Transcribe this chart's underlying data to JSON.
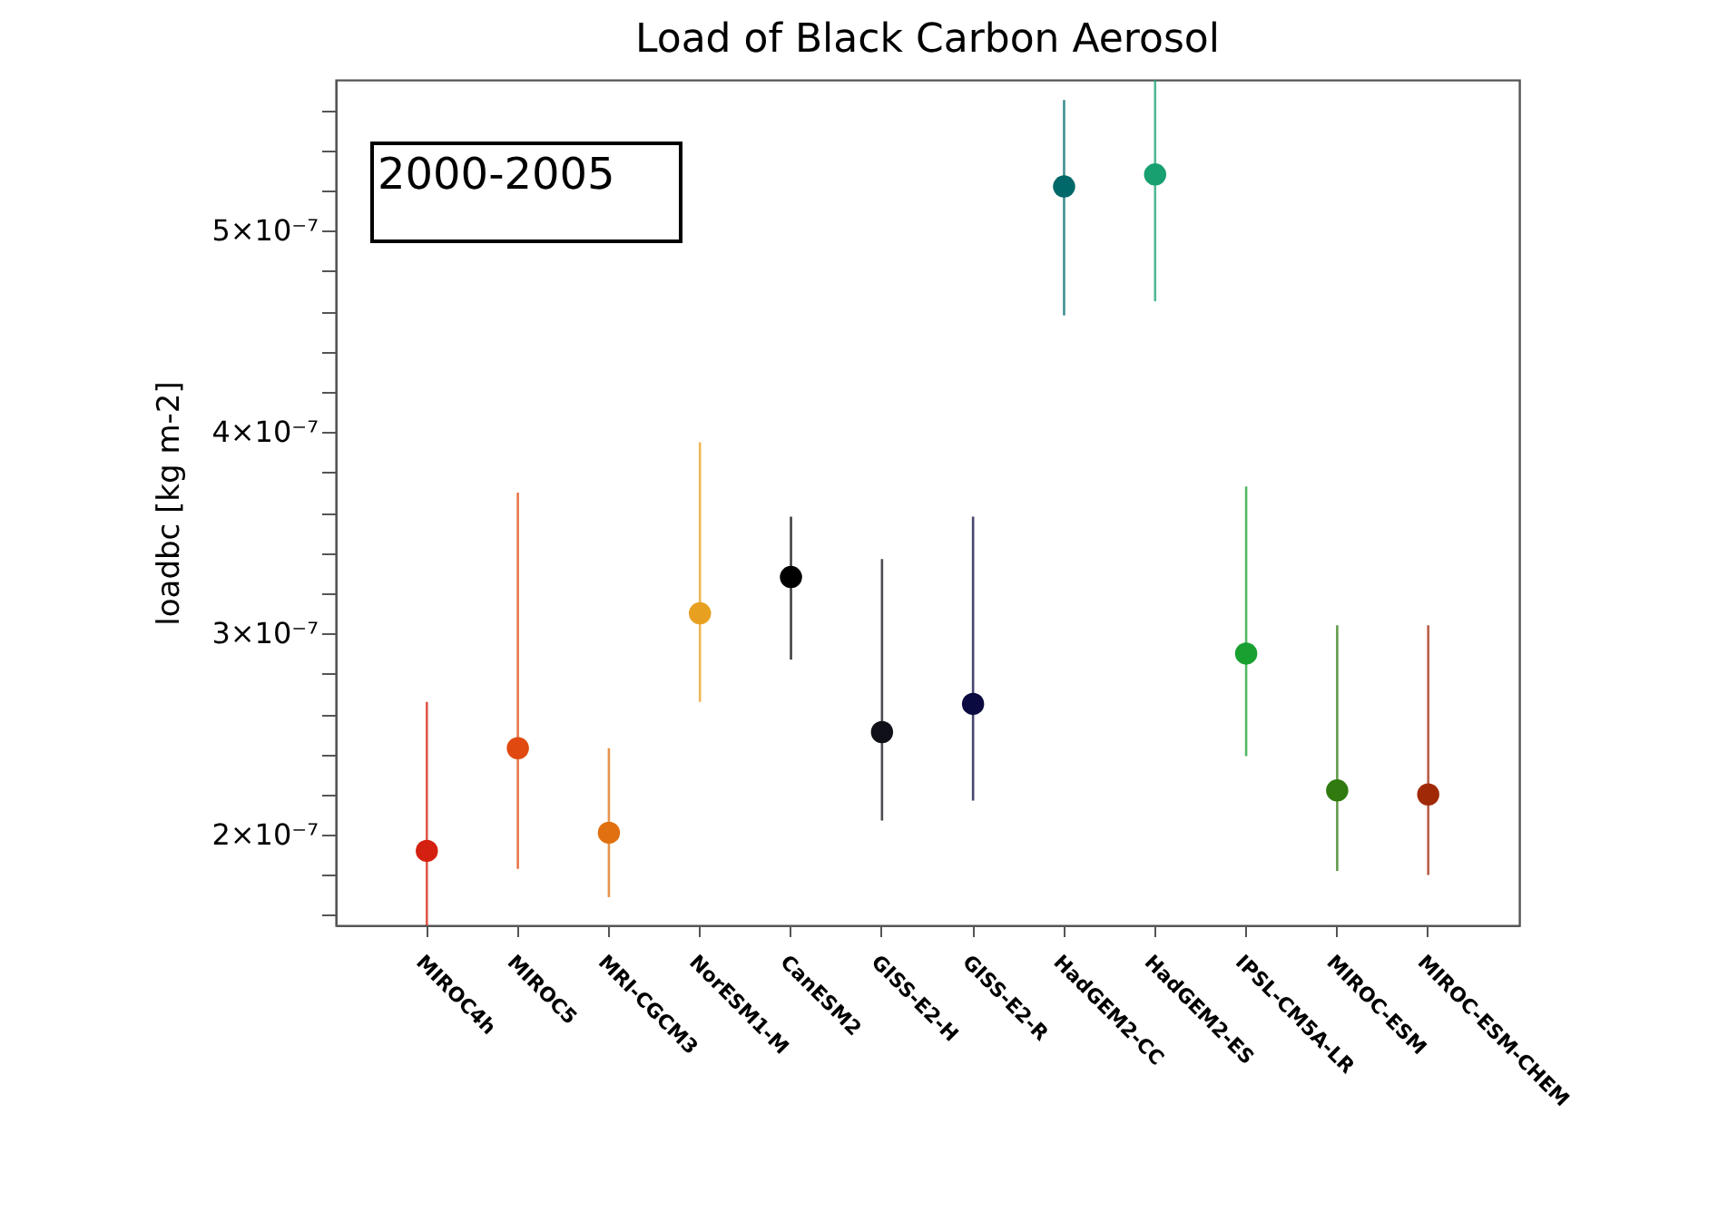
{
  "chart_data": {
    "type": "scatter",
    "title": "Load of Black Carbon Aerosol",
    "ylabel": "loadbc [kg m-2]",
    "annotations": [
      "2000-2005"
    ],
    "categories": [
      "MIROC4h",
      "MIROC5",
      "MRI-CGCM3",
      "NorESM1-M",
      "CanESM2",
      "GISS-E2-H",
      "GISS-E2-R",
      "HadGEM2-CC",
      "HadGEM2-ES",
      "IPSL-CM5A-LR",
      "MIROC-ESM",
      "MIROC-ESM-CHEM"
    ],
    "values": [
      1.92e-07,
      2.43e-07,
      2.01e-07,
      3.1e-07,
      3.28e-07,
      2.51e-07,
      2.65e-07,
      5.22e-07,
      5.28e-07,
      2.9e-07,
      2.22e-07,
      2.2e-07
    ],
    "errors": [
      [
        1.55e-07,
        2.66e-07
      ],
      [
        1.83e-07,
        3.7e-07
      ],
      [
        1.69e-07,
        2.43e-07
      ],
      [
        2.66e-07,
        3.95e-07
      ],
      [
        2.87e-07,
        3.58e-07
      ],
      [
        2.07e-07,
        3.37e-07
      ],
      [
        2.17e-07,
        3.58e-07
      ],
      [
        4.58e-07,
        5.65e-07
      ],
      [
        4.65e-07,
        5.75e-07
      ],
      [
        2.39e-07,
        3.73e-07
      ],
      [
        1.82e-07,
        3.04e-07
      ],
      [
        1.8e-07,
        3.04e-07
      ]
    ],
    "colors": [
      "#d42010",
      "#e04a10",
      "#e07010",
      "#e8a020",
      "#000000",
      "#101018",
      "#0a0a40",
      "#006868",
      "#18a070",
      "#18a030",
      "#307a10",
      "#a02a08"
    ],
    "ylim": [
      1.55e-07,
      5.75e-07
    ],
    "yticks": [
      {
        "value": 1.6e-07,
        "label": null
      },
      {
        "value": 1.8e-07,
        "label": null
      },
      {
        "value": 2e-07,
        "label": "2×10⁻⁷"
      },
      {
        "value": 2.2e-07,
        "label": null
      },
      {
        "value": 2.4e-07,
        "label": null
      },
      {
        "value": 2.6e-07,
        "label": null
      },
      {
        "value": 2.8e-07,
        "label": null
      },
      {
        "value": 3e-07,
        "label": "3×10⁻⁷"
      },
      {
        "value": 3.2e-07,
        "label": null
      },
      {
        "value": 3.4e-07,
        "label": null
      },
      {
        "value": 3.6e-07,
        "label": null
      },
      {
        "value": 3.8e-07,
        "label": null
      },
      {
        "value": 4e-07,
        "label": "4×10⁻⁷"
      },
      {
        "value": 4.2e-07,
        "label": null
      },
      {
        "value": 4.4e-07,
        "label": null
      },
      {
        "value": 4.6e-07,
        "label": null
      },
      {
        "value": 4.8e-07,
        "label": null
      },
      {
        "value": 5e-07,
        "label": "5×10⁻⁷"
      },
      {
        "value": 5.2e-07,
        "label": null
      },
      {
        "value": 5.4e-07,
        "label": null
      },
      {
        "value": 5.6e-07,
        "label": null
      }
    ],
    "marker": "circle",
    "grid": false,
    "legend": false
  }
}
